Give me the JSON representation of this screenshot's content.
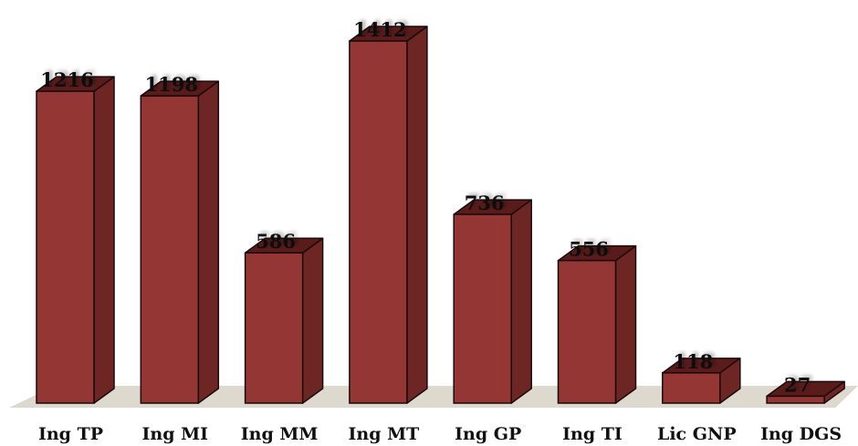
{
  "chart_data": {
    "type": "bar",
    "title": "",
    "xlabel": "",
    "ylabel": "",
    "categories": [
      "Ing TP",
      "Ing MI",
      "Ing MM",
      "Ing MT",
      "Ing GP",
      "Ing TI",
      "Lic GNP",
      "Ing DGS"
    ],
    "values": [
      1216,
      1198,
      586,
      1412,
      736,
      556,
      118,
      27
    ],
    "ylim": [
      0,
      1412
    ],
    "grid": false,
    "legend": "none",
    "three_d": true,
    "data_labels": true
  },
  "colors": {
    "bar_front": "#943634",
    "bar_side": "#6e2624",
    "bar_top": "#5a1c1b",
    "bar_outline": "#1a0a0a",
    "floor": "#ddd9cf"
  }
}
